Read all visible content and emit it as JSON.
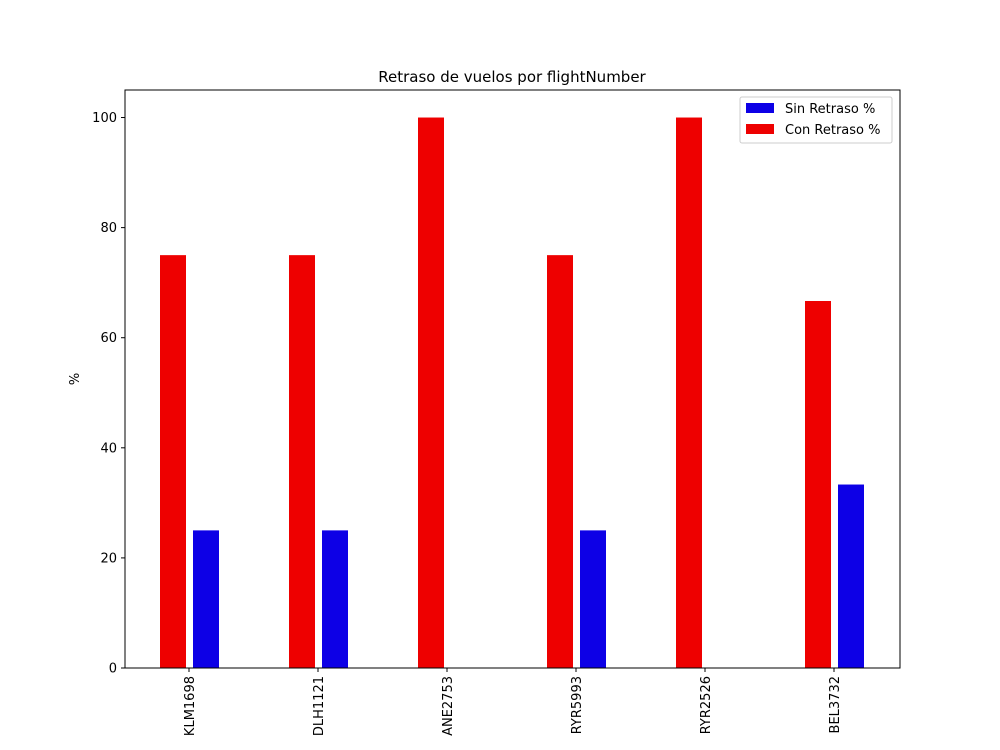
{
  "chart_data": {
    "type": "bar",
    "title": "Retraso de vuelos por flightNumber",
    "xlabel": "",
    "ylabel": "%",
    "ylim": [
      0,
      105
    ],
    "yticks": [
      0,
      20,
      40,
      60,
      80,
      100
    ],
    "categories": [
      "KLM1698",
      "DLH1121",
      "ANE2753",
      "RYR5993",
      "RYR2526",
      "BEL3732"
    ],
    "series": [
      {
        "name": "Sin Retraso %",
        "color": "#0d00e6",
        "values": [
          25,
          25,
          0,
          25,
          0,
          33.33
        ]
      },
      {
        "name": "Con Retraso %",
        "color": "#ee0000",
        "values": [
          75,
          75,
          100,
          75,
          100,
          66.67
        ]
      }
    ],
    "legend_position": "top-right",
    "grid": false
  }
}
